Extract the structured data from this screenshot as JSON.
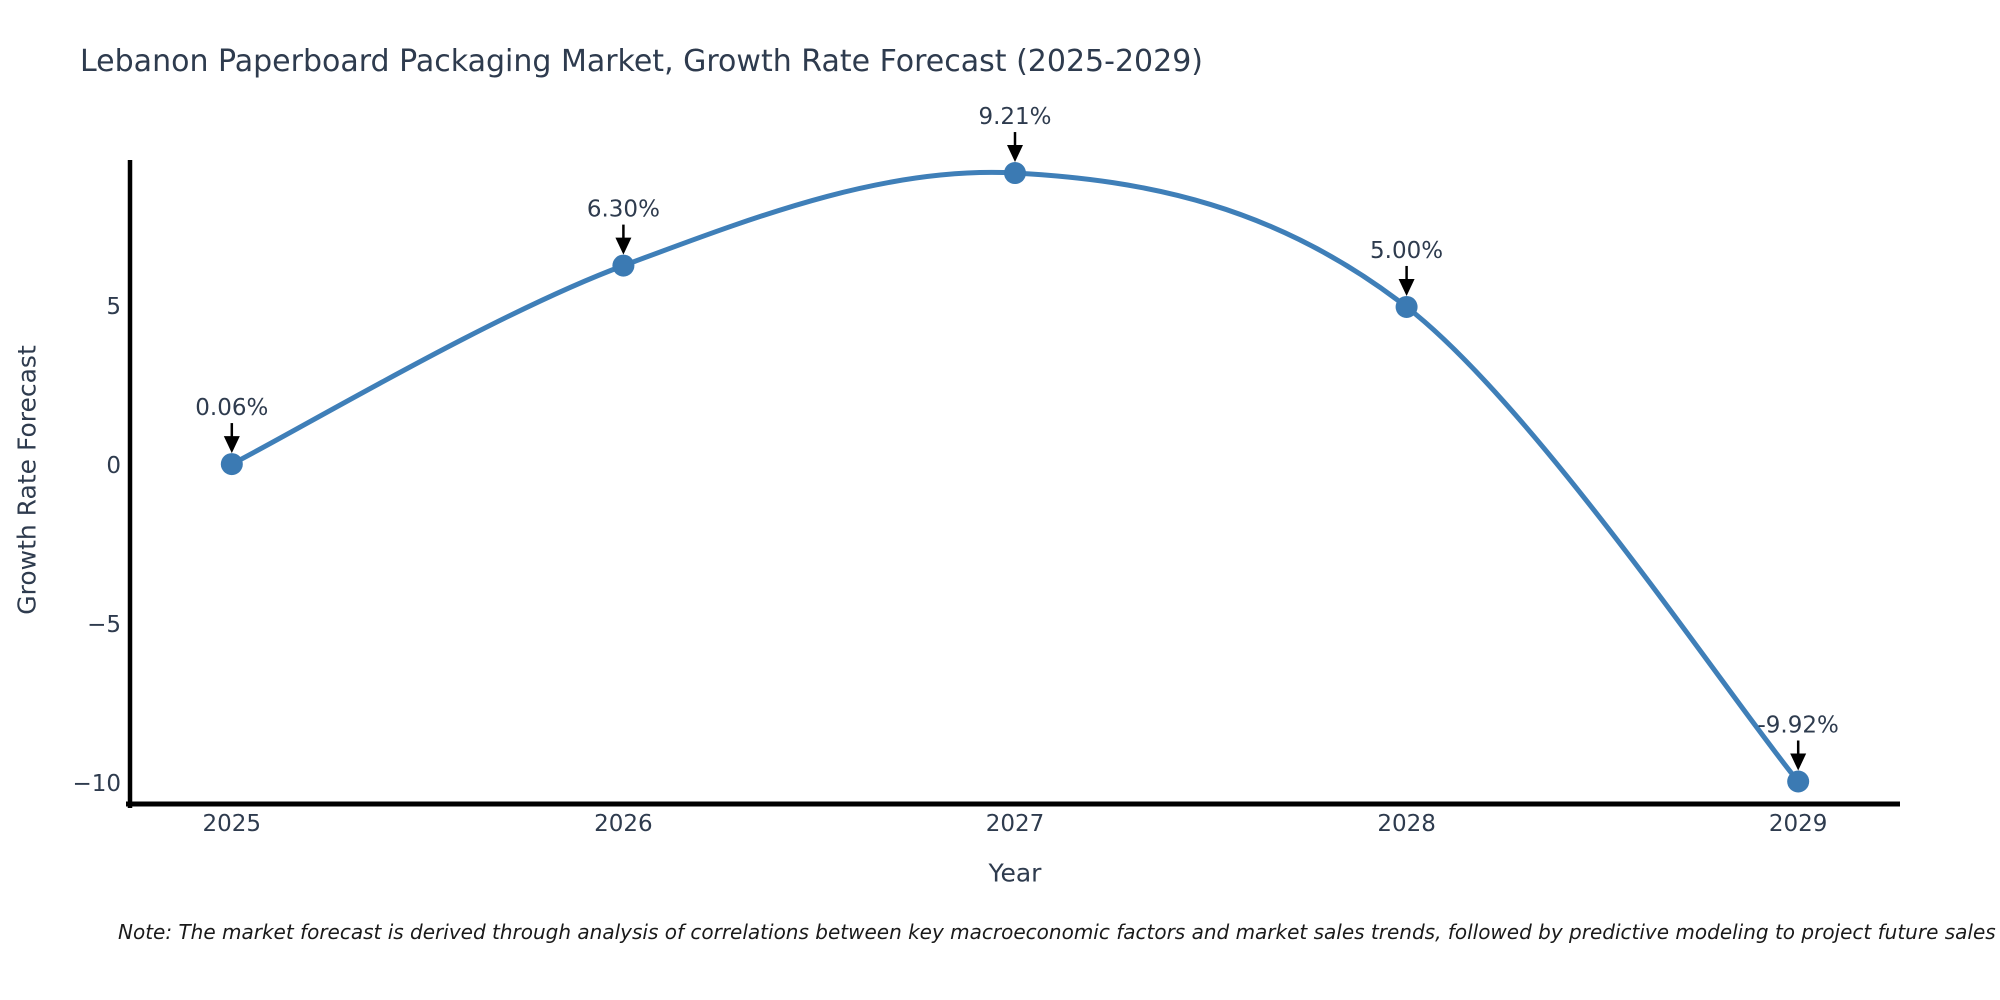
{
  "header": {
    "title": "Lebanon Paperboard Packaging Market, Growth Rate Forecast (2025-2029)"
  },
  "footnote": {
    "text": "Note: The market forecast is derived through analysis of correlations between key macroeconomic factors and market sales trends, followed by predictive modeling to project future sales"
  },
  "chart_data": {
    "type": "line",
    "title": "Lebanon Paperboard Packaging Market, Growth Rate Forecast (2025-2029)",
    "xlabel": "Year",
    "ylabel": "Growth Rate Forecast",
    "x": [
      2025,
      2026,
      2027,
      2028,
      2029
    ],
    "series": [
      {
        "name": "Growth Rate Forecast",
        "values": [
          0.06,
          6.3,
          9.21,
          5.0,
          -9.92
        ]
      }
    ],
    "point_labels": [
      "0.06%",
      "6.30%",
      "9.21%",
      "5.00%",
      "-9.92%"
    ],
    "xtick_labels": [
      "2025",
      "2026",
      "2027",
      "2028",
      "2029"
    ],
    "ytick_values": [
      5,
      0,
      -5,
      -10
    ],
    "ytick_labels": [
      "5",
      "0",
      "−5",
      "−10"
    ],
    "xlim": [
      2024.74,
      2029.26
    ],
    "ylim": [
      -10.69,
      9.62
    ],
    "grid": false,
    "legend": "none",
    "smooth": true,
    "line_width": 5,
    "marker_radius": 11,
    "colors": {
      "line": "#3f7fb8",
      "marker": "#3b7ab3",
      "axis": "#000000",
      "text": "#2e3b4e",
      "annotation_arrow": "#000000",
      "note_text": "#1a1a1a",
      "background": "#ffffff"
    }
  }
}
